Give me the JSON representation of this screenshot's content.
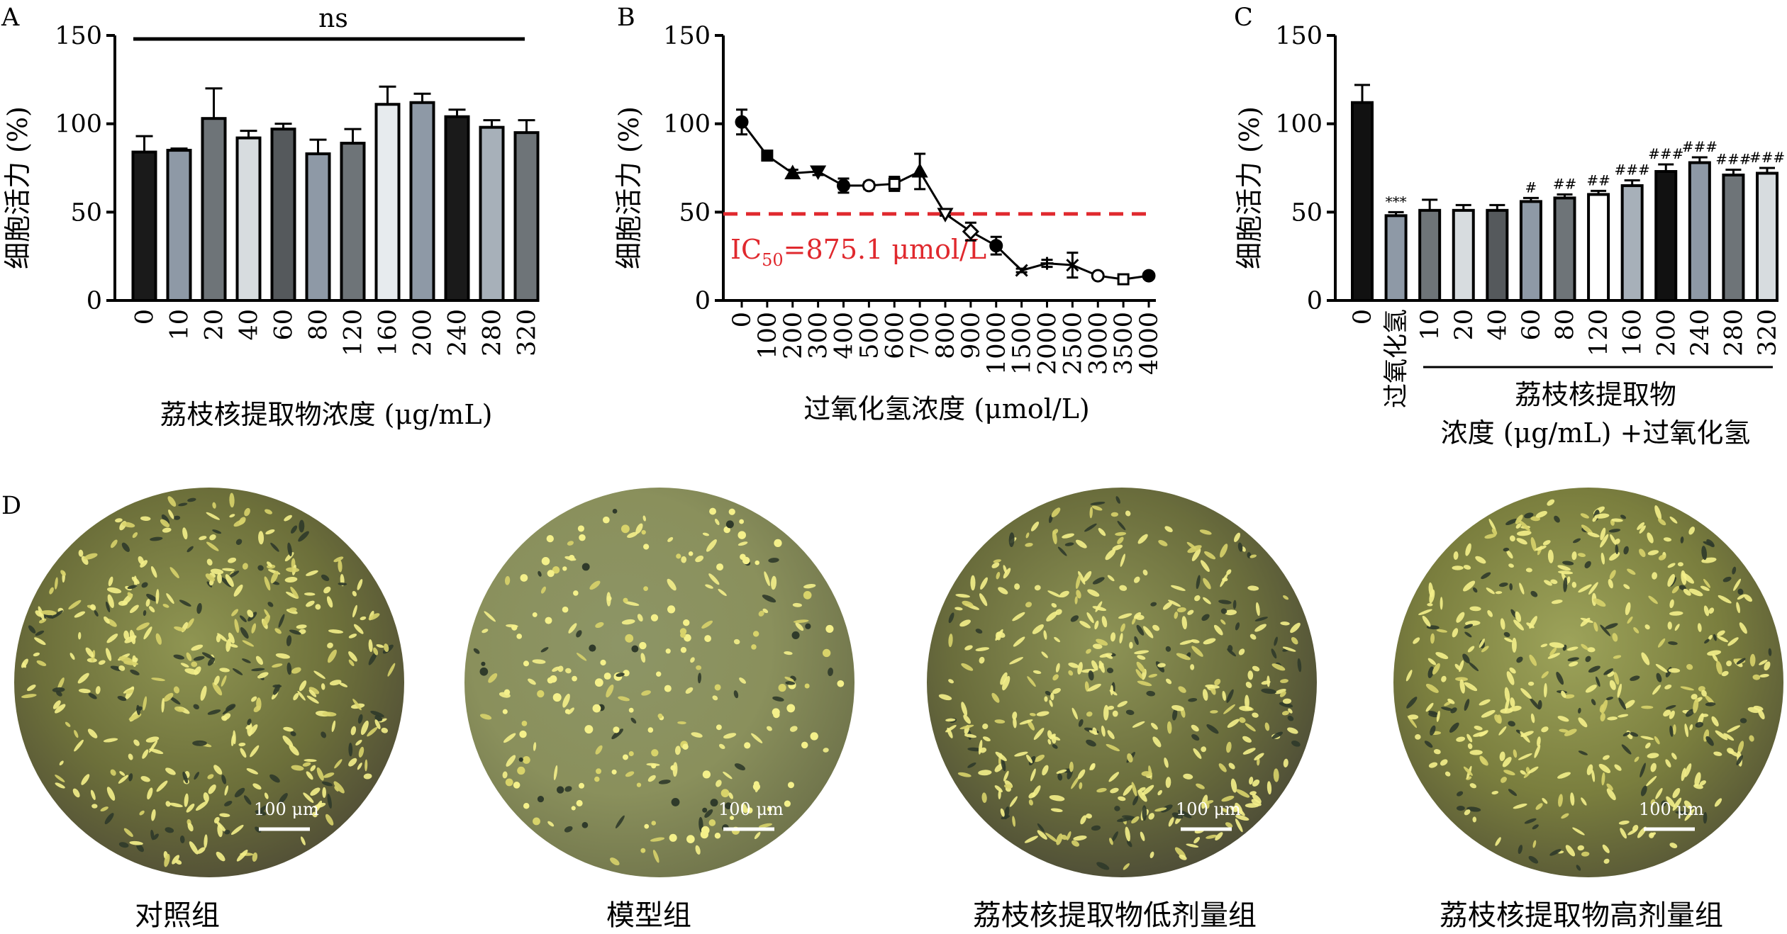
{
  "panel_letters": {
    "a": "A",
    "b": "B",
    "c": "C",
    "d": "D"
  },
  "chart_data": [
    {
      "panel": "A",
      "type": "bar",
      "ylabel": "细胞活力 (%)",
      "xlabel": "荔枝核提取物浓度 (μg/mL)",
      "ylim": [
        0,
        150
      ],
      "yticks": [
        0,
        50,
        100,
        150
      ],
      "categories": [
        "0",
        "10",
        "20",
        "40",
        "60",
        "80",
        "120",
        "160",
        "200",
        "240",
        "280",
        "320"
      ],
      "values": [
        84,
        85,
        103,
        92,
        97,
        83,
        89,
        111,
        112,
        104,
        98,
        95
      ],
      "errors": [
        9,
        1,
        17,
        4,
        3,
        8,
        8,
        10,
        5,
        4,
        4,
        7
      ],
      "bar_colors": [
        "#1a1a1a",
        "#8e99a6",
        "#6e7478",
        "#d7dcdf",
        "#55595c",
        "#8e99a6",
        "#6e7478",
        "#e7ebee",
        "#8e99a6",
        "#1a1a1a",
        "#a7b0b9",
        "#6e7478"
      ],
      "annotation": "ns"
    },
    {
      "panel": "B",
      "type": "line",
      "ylabel": "细胞活力 (%)",
      "xlabel": "过氧化氢浓度 (μmol/L)",
      "ylim": [
        0,
        150
      ],
      "yticks": [
        0,
        50,
        100,
        150
      ],
      "categories": [
        "0",
        "100",
        "200",
        "300",
        "400",
        "500",
        "600",
        "700",
        "800",
        "900",
        "1000",
        "1500",
        "2000",
        "2500",
        "3000",
        "3500",
        "4000"
      ],
      "values": [
        101,
        82,
        72,
        73,
        65,
        65,
        66,
        73,
        49,
        39,
        31,
        17,
        21,
        20,
        14,
        12,
        14
      ],
      "errors": [
        7,
        1,
        2,
        2,
        4,
        2,
        4,
        10,
        1,
        5,
        5,
        1,
        2,
        7,
        1,
        1,
        1
      ],
      "markers": [
        "circle",
        "square",
        "triangle",
        "triangle-down",
        "circle",
        "circle-open",
        "square-open",
        "triangle",
        "triangle-down-open",
        "diamond-open",
        "circle",
        "x",
        "plus",
        "x",
        "circle-open",
        "square-open",
        "circle"
      ],
      "reference_line": {
        "y": 49,
        "color": "#e0292e",
        "style": "dashed"
      },
      "annotation": {
        "prefix": "IC",
        "subscript": "50",
        "value": "=875.1 μmol/L",
        "color": "#e0292e"
      }
    },
    {
      "panel": "C",
      "type": "bar",
      "ylabel": "细胞活力 (%)",
      "ylim": [
        0,
        150
      ],
      "yticks": [
        0,
        50,
        100,
        150
      ],
      "categories": [
        "0",
        "过氧化氢",
        "10",
        "20",
        "40",
        "60",
        "80",
        "120",
        "160",
        "200",
        "240",
        "280",
        "320"
      ],
      "values": [
        112,
        48,
        51,
        51,
        51,
        56,
        58,
        60,
        65,
        73,
        78,
        71,
        72
      ],
      "errors": [
        10,
        2,
        6,
        3,
        3,
        2,
        2,
        2,
        3,
        4,
        3,
        3,
        3
      ],
      "significance": [
        "",
        "***",
        "",
        "",
        "",
        "#",
        "##",
        "##",
        "###",
        "###",
        "###",
        "###",
        "###"
      ],
      "bar_colors": [
        "#111111",
        "#8e99a6",
        "#6e7478",
        "#d7dcdf",
        "#55595c",
        "#8e99a6",
        "#6e7478",
        "#ffffff",
        "#a7b0b9",
        "#111111",
        "#8e99a6",
        "#6e7478",
        "#d7dcdf"
      ],
      "group_label_line1": "荔枝核提取物",
      "group_label_line2": "浓度 (μg/mL) +过氧化氢"
    }
  ],
  "micrographs": [
    {
      "caption": "对照组",
      "scale_bar": "100 μm"
    },
    {
      "caption": "模型组",
      "scale_bar": "100 μm"
    },
    {
      "caption": "荔枝核提取物低剂量组",
      "scale_bar": "100 μm"
    },
    {
      "caption": "荔枝核提取物高剂量组",
      "scale_bar": "100 μm"
    }
  ]
}
